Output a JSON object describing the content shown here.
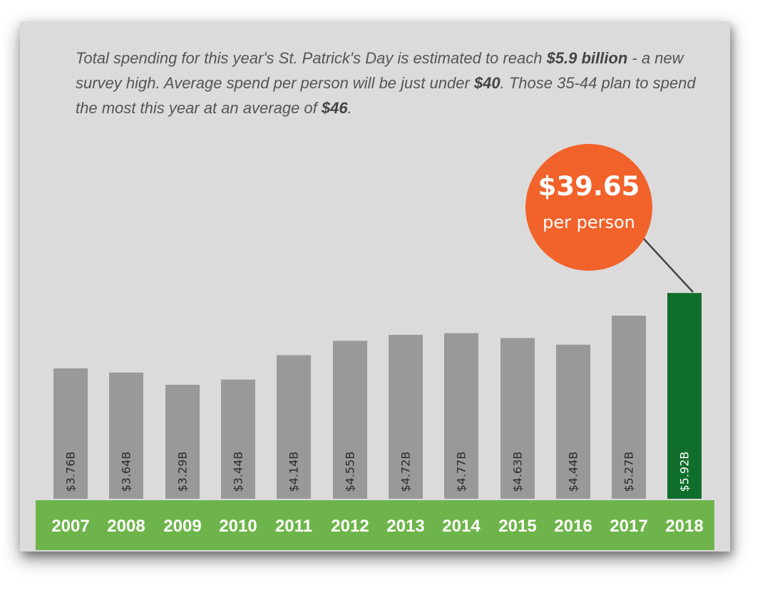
{
  "intro": {
    "p1": "Total spending for this year's St. Patrick's Day is estimated to reach ",
    "b1": "$5.9 billion",
    "p2": " - a new survey high. Average spend per person will be just under ",
    "b2": "$40",
    "p3": ". Those 35-44 plan to spend the most this year at an average of ",
    "b3": "$46",
    "p4": "."
  },
  "callout": {
    "value": "$39.65",
    "label": "per person"
  },
  "colors": {
    "background": "#dcdbdc",
    "bar": "#999999",
    "highlight_bar": "#0f6e2c",
    "year_band": "#6db54a",
    "callout": "#f2622b"
  },
  "chart_data": {
    "type": "bar",
    "categories": [
      "2007",
      "2008",
      "2009",
      "2010",
      "2011",
      "2012",
      "2013",
      "2014",
      "2015",
      "2016",
      "2017",
      "2018"
    ],
    "values": [
      3.76,
      3.64,
      3.29,
      3.44,
      4.14,
      4.55,
      4.72,
      4.77,
      4.63,
      4.44,
      5.27,
      5.92
    ],
    "labels": [
      "$3.76B",
      "$3.64B",
      "$3.29B",
      "$3.44B",
      "$4.14B",
      "$4.55B",
      "$4.72B",
      "$4.77B",
      "$4.63B",
      "$4.44B",
      "$5.27B",
      "$5.92B"
    ],
    "highlight": "2018",
    "unit": "billion USD",
    "grid": false
  }
}
